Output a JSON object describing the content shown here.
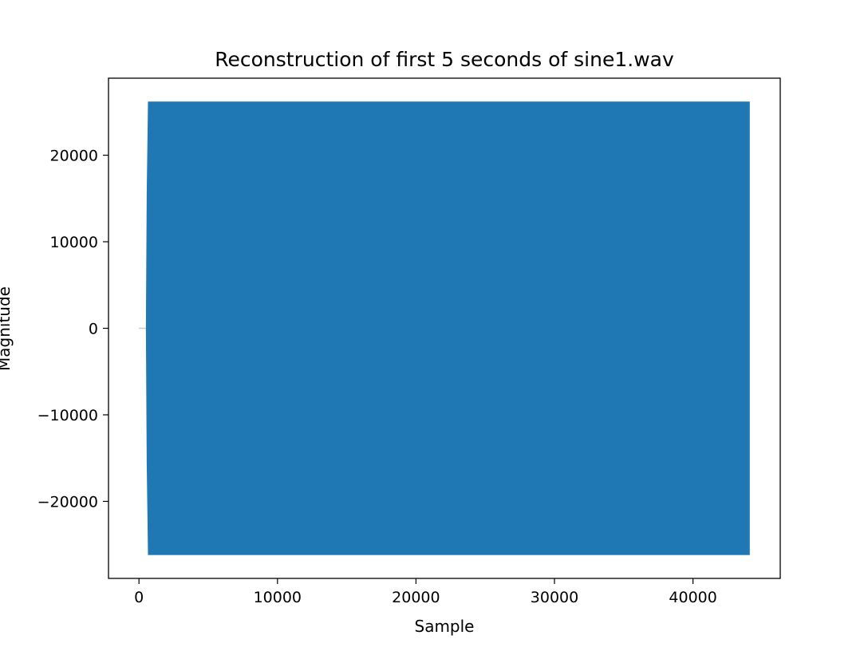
{
  "chart_data": {
    "type": "line",
    "title": "Reconstruction of first 5 seconds of sine1.wav",
    "xlabel": "Sample",
    "ylabel": "Magnitude",
    "xlim": [
      -2200,
      46300
    ],
    "ylim": [
      -28900,
      28900
    ],
    "x_ticks": [
      0,
      10000,
      20000,
      30000,
      40000
    ],
    "x_tick_labels": [
      "0",
      "10000",
      "20000",
      "30000",
      "40000"
    ],
    "y_ticks": [
      -20000,
      -10000,
      0,
      10000,
      20000
    ],
    "y_tick_labels": [
      "−20000",
      "−10000",
      "0",
      "10000",
      "20000"
    ],
    "grid": false,
    "legend": "none",
    "series": [
      {
        "color": "#1f77b4",
        "lead_in": {
          "x_start": 0,
          "x_end": 500,
          "value": 0
        },
        "onset_x": [
          500,
          650
        ],
        "oscillation": {
          "x_start": 650,
          "x_end": 44100,
          "min": -26200,
          "max": 26200
        }
      }
    ]
  }
}
